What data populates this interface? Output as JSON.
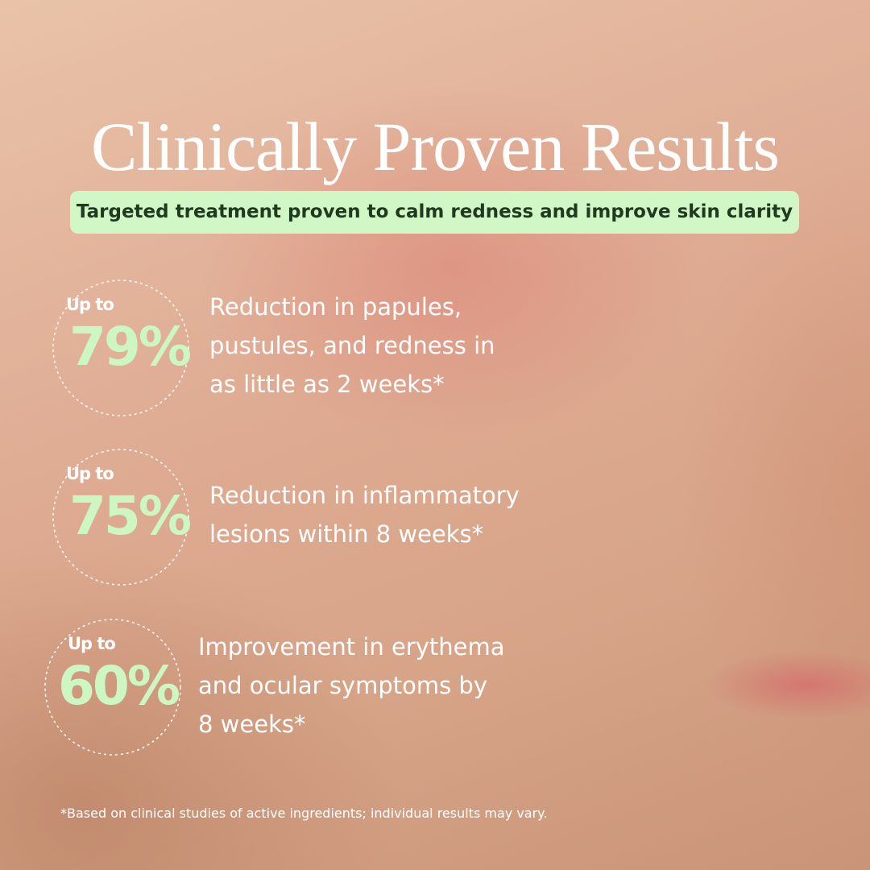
{
  "header": {
    "title": "Clinically Proven Results",
    "subtitle": "Targeted treatment proven to calm redness and improve skin clarity"
  },
  "stats": [
    {
      "prefix": "Up to",
      "figure": "79%",
      "lines": [
        "Reduction in papules,",
        "pustules, and redness in",
        "as little as 2 weeks*"
      ]
    },
    {
      "prefix": "Up to",
      "figure": "75%",
      "lines": [
        "Reduction in inflammatory",
        "lesions within 8 weeks*"
      ]
    },
    {
      "prefix": "Up to",
      "figure": "60%",
      "lines": [
        "Improvement in erythema",
        "and ocular symptoms by",
        "8 weeks*"
      ]
    }
  ],
  "footnote": "*Based on clinical studies of active ingredients; individual results may vary."
}
